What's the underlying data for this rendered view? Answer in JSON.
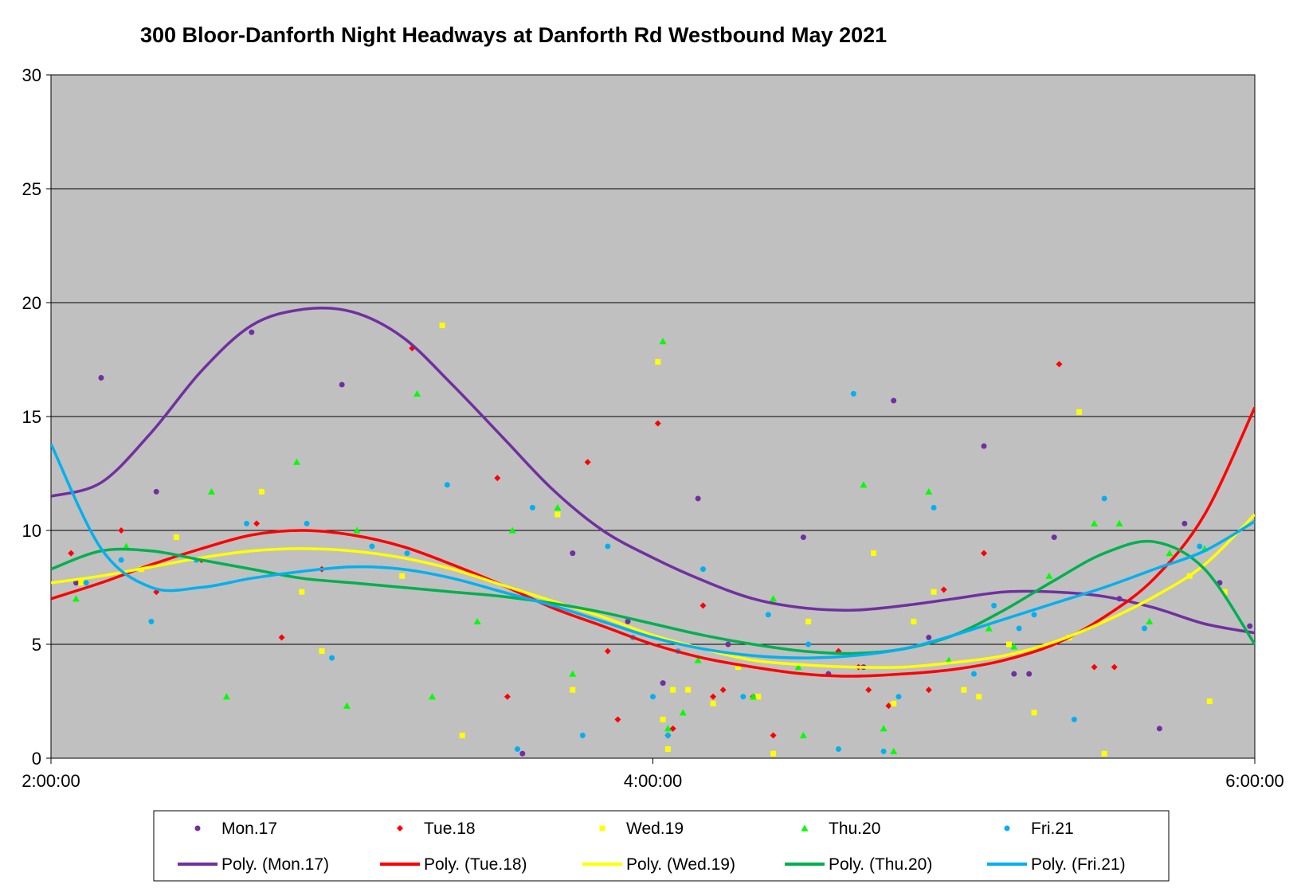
{
  "chart_data": {
    "type": "scatter",
    "title": "300 Bloor-Danforth Night Headways at Danforth Rd Westbound May 2021",
    "xlabel": "",
    "ylabel": "",
    "xlim": [
      "2:00:00",
      "6:00:00"
    ],
    "ylim": [
      0,
      30
    ],
    "x_ticks": [
      "2:00:00",
      "4:00:00",
      "6:00:00"
    ],
    "y_ticks": [
      "0",
      "5",
      "10",
      "15",
      "20",
      "25",
      "30"
    ],
    "grid": "horizontal",
    "legend_position": "bottom",
    "plot_background": "#c0c0c0",
    "series": [
      {
        "name": "Mon.17",
        "marker": "circle",
        "color": "#7030a0",
        "x": [
          "2:05:00",
          "2:10:00",
          "2:21:00",
          "2:40:00",
          "2:58:00",
          "3:34:00",
          "3:44:00",
          "3:55:00",
          "4:02:00",
          "4:09:00",
          "4:15:00",
          "4:30:00",
          "4:35:00",
          "4:42:00",
          "4:48:00",
          "4:55:00",
          "5:06:00",
          "5:12:00",
          "5:15:00",
          "5:20:00",
          "5:33:00",
          "5:41:00",
          "5:46:00",
          "5:53:00",
          "5:59:00"
        ],
        "y": [
          7.7,
          16.7,
          11.7,
          18.7,
          16.4,
          0.2,
          9.0,
          6.0,
          3.3,
          11.4,
          5.0,
          9.7,
          3.7,
          4.0,
          15.7,
          5.3,
          13.7,
          3.7,
          3.7,
          9.7,
          7.0,
          1.3,
          10.3,
          7.7,
          5.8
        ]
      },
      {
        "name": "Tue.18",
        "marker": "diamond",
        "color": "#ff0000",
        "x": [
          "2:04:00",
          "2:14:00",
          "2:21:00",
          "2:30:00",
          "2:41:00",
          "2:46:00",
          "2:54:00",
          "3:12:00",
          "3:29:00",
          "3:31:00",
          "3:47:00",
          "3:51:00",
          "3:53:00",
          "4:01:00",
          "4:03:00",
          "4:04:00",
          "4:10:00",
          "4:12:00",
          "4:14:00",
          "4:20:00",
          "4:24:00",
          "4:37:00",
          "4:41:00",
          "4:43:00",
          "4:47:00",
          "4:55:00",
          "4:58:00",
          "5:06:00",
          "5:21:00",
          "5:28:00",
          "5:32:00"
        ],
        "y": [
          9.0,
          10.0,
          7.3,
          8.7,
          10.3,
          5.3,
          8.3,
          18.0,
          12.3,
          2.7,
          13.0,
          4.7,
          1.7,
          14.7,
          1.0,
          1.3,
          6.7,
          2.7,
          3.0,
          2.7,
          1.0,
          4.7,
          4.0,
          3.0,
          2.3,
          3.0,
          7.4,
          9.0,
          17.3,
          4.0,
          4.0
        ]
      },
      {
        "name": "Wed.19",
        "marker": "square",
        "color": "#ffff00",
        "x": [
          "2:06:00",
          "2:18:00",
          "2:25:00",
          "2:42:00",
          "2:50:00",
          "2:54:00",
          "3:10:00",
          "3:18:00",
          "3:22:00",
          "3:41:00",
          "3:44:00",
          "4:01:00",
          "4:02:00",
          "4:03:00",
          "4:04:00",
          "4:07:00",
          "4:12:00",
          "4:17:00",
          "4:21:00",
          "4:24:00",
          "4:31:00",
          "4:44:00",
          "4:48:00",
          "4:52:00",
          "4:56:00",
          "5:02:00",
          "5:05:00",
          "5:11:00",
          "5:16:00",
          "5:23:00",
          "5:25:00",
          "5:30:00",
          "5:47:00",
          "5:51:00",
          "5:54:00"
        ],
        "y": [
          7.7,
          8.3,
          9.7,
          11.7,
          7.3,
          4.7,
          8.0,
          19.0,
          1.0,
          10.7,
          3.0,
          17.4,
          1.7,
          0.4,
          3.0,
          3.0,
          2.4,
          4.0,
          2.7,
          0.2,
          6.0,
          9.0,
          2.4,
          6.0,
          7.3,
          3.0,
          2.7,
          5.0,
          2.0,
          5.3,
          15.2,
          0.2,
          8.0,
          2.5,
          7.3
        ]
      },
      {
        "name": "Thu.20",
        "marker": "triangle",
        "color": "#00ff00",
        "x": [
          "2:05:00",
          "2:15:00",
          "2:32:00",
          "2:35:00",
          "2:49:00",
          "2:59:00",
          "3:01:00",
          "3:13:00",
          "3:16:00",
          "3:25:00",
          "3:32:00",
          "3:41:00",
          "3:44:00",
          "4:02:00",
          "4:03:00",
          "4:06:00",
          "4:09:00",
          "4:20:00",
          "4:24:00",
          "4:29:00",
          "4:30:00",
          "4:42:00",
          "4:46:00",
          "4:48:00",
          "4:55:00",
          "4:59:00",
          "5:07:00",
          "5:12:00",
          "5:19:00",
          "5:28:00",
          "5:33:00",
          "5:39:00",
          "5:43:00",
          "5:50:00"
        ],
        "y": [
          7.0,
          9.3,
          11.7,
          2.7,
          13.0,
          2.3,
          10.0,
          16.0,
          2.7,
          6.0,
          10.0,
          11.0,
          3.7,
          18.3,
          1.3,
          2.0,
          4.3,
          2.7,
          7.0,
          4.0,
          1.0,
          12.0,
          1.3,
          0.3,
          11.7,
          4.3,
          5.7,
          4.9,
          8.0,
          10.3,
          10.3,
          6.0,
          9.0,
          9.2
        ]
      },
      {
        "name": "Fri.21",
        "marker": "circle",
        "color": "#00b0f0",
        "x": [
          "2:07:00",
          "2:14:00",
          "2:20:00",
          "2:29:00",
          "2:39:00",
          "2:51:00",
          "2:56:00",
          "3:04:00",
          "3:11:00",
          "3:19:00",
          "3:33:00",
          "3:36:00",
          "3:46:00",
          "3:51:00",
          "3:56:00",
          "4:00:00",
          "4:03:00",
          "4:05:00",
          "4:10:00",
          "4:18:00",
          "4:23:00",
          "4:31:00",
          "4:37:00",
          "4:40:00",
          "4:46:00",
          "4:49:00",
          "4:56:00",
          "5:04:00",
          "5:08:00",
          "5:13:00",
          "5:16:00",
          "5:24:00",
          "5:30:00",
          "5:38:00",
          "5:49:00"
        ],
        "y": [
          7.7,
          8.7,
          6.0,
          8.7,
          10.3,
          10.3,
          4.4,
          9.3,
          9.0,
          12.0,
          0.4,
          11.0,
          1.0,
          9.3,
          5.3,
          2.7,
          1.0,
          4.7,
          8.3,
          2.7,
          6.3,
          5.0,
          0.4,
          16.0,
          0.3,
          2.7,
          11.0,
          3.7,
          6.7,
          5.7,
          6.3,
          1.7,
          11.4,
          5.7,
          9.3
        ]
      },
      {
        "name": "Poly. (Mon.17)",
        "type": "line",
        "color": "#7030a0",
        "x": [
          "2:00:00",
          "2:10:00",
          "2:20:00",
          "2:30:00",
          "2:40:00",
          "2:50:00",
          "3:00:00",
          "3:10:00",
          "3:20:00",
          "3:30:00",
          "3:40:00",
          "3:50:00",
          "4:00:00",
          "4:10:00",
          "4:20:00",
          "4:30:00",
          "4:40:00",
          "4:50:00",
          "5:00:00",
          "5:10:00",
          "5:20:00",
          "5:30:00",
          "5:40:00",
          "5:50:00",
          "6:00:00"
        ],
        "y": [
          11.5,
          12.1,
          14.3,
          17.0,
          19.0,
          19.7,
          19.6,
          18.5,
          16.4,
          14.1,
          11.8,
          10.0,
          8.8,
          7.8,
          7.0,
          6.6,
          6.5,
          6.7,
          7.0,
          7.3,
          7.3,
          7.1,
          6.6,
          5.9,
          5.5
        ]
      },
      {
        "name": "Poly. (Tue.18)",
        "type": "line",
        "color": "#ff0000",
        "x": [
          "2:00:00",
          "2:10:00",
          "2:20:00",
          "2:30:00",
          "2:40:00",
          "2:50:00",
          "3:00:00",
          "3:10:00",
          "3:20:00",
          "3:30:00",
          "3:40:00",
          "3:50:00",
          "4:00:00",
          "4:10:00",
          "4:20:00",
          "4:30:00",
          "4:40:00",
          "4:50:00",
          "5:00:00",
          "5:10:00",
          "5:20:00",
          "5:30:00",
          "5:40:00",
          "5:50:00",
          "6:00:00"
        ],
        "y": [
          7.0,
          7.7,
          8.5,
          9.2,
          9.8,
          10.0,
          9.8,
          9.3,
          8.5,
          7.6,
          6.6,
          5.8,
          5.0,
          4.4,
          4.0,
          3.7,
          3.6,
          3.7,
          3.9,
          4.3,
          5.0,
          6.2,
          7.9,
          10.7,
          15.4
        ]
      },
      {
        "name": "Poly. (Wed.19)",
        "type": "line",
        "color": "#ffff00",
        "x": [
          "2:00:00",
          "2:10:00",
          "2:20:00",
          "2:30:00",
          "2:40:00",
          "2:50:00",
          "3:00:00",
          "3:10:00",
          "3:20:00",
          "3:30:00",
          "3:40:00",
          "3:50:00",
          "4:00:00",
          "4:10:00",
          "4:20:00",
          "4:30:00",
          "4:40:00",
          "4:50:00",
          "5:00:00",
          "5:10:00",
          "5:20:00",
          "5:30:00",
          "5:40:00",
          "5:50:00",
          "6:00:00"
        ],
        "y": [
          7.7,
          8.0,
          8.4,
          8.8,
          9.1,
          9.2,
          9.1,
          8.8,
          8.3,
          7.6,
          6.9,
          6.2,
          5.4,
          4.8,
          4.3,
          4.1,
          4.0,
          4.0,
          4.2,
          4.5,
          5.1,
          6.0,
          7.1,
          8.5,
          10.7
        ]
      },
      {
        "name": "Poly. (Thu.20)",
        "type": "line",
        "color": "#00b050",
        "x": [
          "2:00:00",
          "2:10:00",
          "2:20:00",
          "2:30:00",
          "2:40:00",
          "2:50:00",
          "3:00:00",
          "3:10:00",
          "3:20:00",
          "3:30:00",
          "3:40:00",
          "3:50:00",
          "4:00:00",
          "4:10:00",
          "4:20:00",
          "4:30:00",
          "4:40:00",
          "4:50:00",
          "5:00:00",
          "5:10:00",
          "5:20:00",
          "5:30:00",
          "5:40:00",
          "5:50:00",
          "6:00:00"
        ],
        "y": [
          8.3,
          9.1,
          9.1,
          8.7,
          8.3,
          7.9,
          7.7,
          7.5,
          7.3,
          7.1,
          6.8,
          6.4,
          5.9,
          5.4,
          5.0,
          4.7,
          4.6,
          4.8,
          5.4,
          6.5,
          7.8,
          9.0,
          9.5,
          8.3,
          5.0
        ]
      },
      {
        "name": "Poly. (Fri.21)",
        "type": "line",
        "color": "#00b0f0",
        "x": [
          "2:00:00",
          "2:10:00",
          "2:20:00",
          "2:30:00",
          "2:40:00",
          "2:50:00",
          "3:00:00",
          "3:10:00",
          "3:20:00",
          "3:30:00",
          "3:40:00",
          "3:50:00",
          "4:00:00",
          "4:10:00",
          "4:20:00",
          "4:30:00",
          "4:40:00",
          "4:50:00",
          "5:00:00",
          "5:10:00",
          "5:20:00",
          "5:30:00",
          "5:40:00",
          "5:50:00",
          "6:00:00"
        ],
        "y": [
          13.8,
          9.2,
          7.5,
          7.5,
          7.9,
          8.2,
          8.4,
          8.3,
          7.9,
          7.3,
          6.7,
          6.0,
          5.3,
          4.8,
          4.5,
          4.4,
          4.5,
          4.8,
          5.4,
          6.1,
          6.8,
          7.5,
          8.3,
          9.1,
          10.4
        ]
      }
    ]
  }
}
